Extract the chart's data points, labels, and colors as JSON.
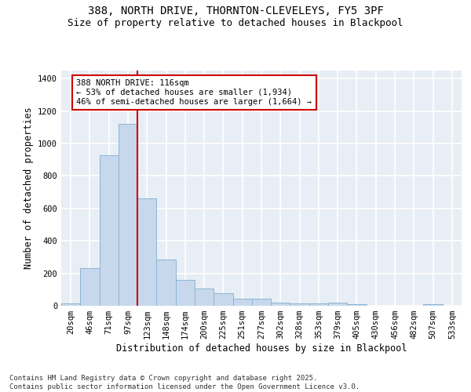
{
  "title_line1": "388, NORTH DRIVE, THORNTON-CLEVELEYS, FY5 3PF",
  "title_line2": "Size of property relative to detached houses in Blackpool",
  "xlabel": "Distribution of detached houses by size in Blackpool",
  "ylabel": "Number of detached properties",
  "bar_color": "#c8d8ec",
  "bar_edge_color": "#8ab4d4",
  "background_color": "#e8eef5",
  "grid_color": "#ffffff",
  "categories": [
    "20sqm",
    "46sqm",
    "71sqm",
    "97sqm",
    "123sqm",
    "148sqm",
    "174sqm",
    "200sqm",
    "225sqm",
    "251sqm",
    "277sqm",
    "302sqm",
    "328sqm",
    "353sqm",
    "379sqm",
    "405sqm",
    "430sqm",
    "456sqm",
    "482sqm",
    "507sqm",
    "533sqm"
  ],
  "values": [
    15,
    230,
    930,
    1120,
    660,
    285,
    160,
    105,
    75,
    42,
    42,
    20,
    15,
    15,
    20,
    10,
    2,
    2,
    2,
    8,
    2
  ],
  "ylim": [
    0,
    1450
  ],
  "yticks": [
    0,
    200,
    400,
    600,
    800,
    1000,
    1200,
    1400
  ],
  "vline_x_index": 3.5,
  "vline_color": "#cc0000",
  "annotation_text": "388 NORTH DRIVE: 116sqm\n← 53% of detached houses are smaller (1,934)\n46% of semi-detached houses are larger (1,664) →",
  "annotation_edge_color": "#cc0000",
  "footnote": "Contains HM Land Registry data © Crown copyright and database right 2025.\nContains public sector information licensed under the Open Government Licence v3.0.",
  "title_fontsize": 10,
  "subtitle_fontsize": 9,
  "axis_label_fontsize": 8.5,
  "tick_fontsize": 7.5,
  "annotation_fontsize": 7.5,
  "footnote_fontsize": 6.5
}
